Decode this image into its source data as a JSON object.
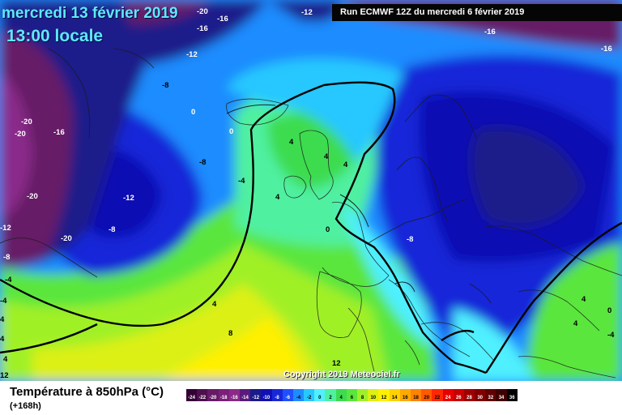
{
  "header": {
    "date": "mercredi 13 février 2019",
    "time": "13:00 locale",
    "run": "Run ECMWF 12Z du mercredi 6 février 2019"
  },
  "copyright": "Copyright 2019 Meteociel.fr",
  "legend": {
    "title": "Température à 850hPa (°C)",
    "subtitle": "(+168h)",
    "scale": [
      {
        "label": "-24",
        "color": "#330033",
        "text": "#ffffff"
      },
      {
        "label": "-22",
        "color": "#4d0f4d",
        "text": "#ffffff"
      },
      {
        "label": "-20",
        "color": "#661a66",
        "text": "#ffffff"
      },
      {
        "label": "-18",
        "color": "#7a1f7a",
        "text": "#ffffff"
      },
      {
        "label": "-16",
        "color": "#8a2a8a",
        "text": "#ffffff"
      },
      {
        "label": "-14",
        "color": "#5a1a7a",
        "text": "#ffffff"
      },
      {
        "label": "-12",
        "color": "#1a1a8a",
        "text": "#ffffff"
      },
      {
        "label": "-10",
        "color": "#1010b4",
        "text": "#ffffff"
      },
      {
        "label": "-8",
        "color": "#1828d8",
        "text": "#ffffff"
      },
      {
        "label": "-6",
        "color": "#1e50ff",
        "text": "#ffffff"
      },
      {
        "label": "-4",
        "color": "#1e8cff",
        "text": "#000000"
      },
      {
        "label": "-2",
        "color": "#28c8ff",
        "text": "#000000"
      },
      {
        "label": "0",
        "color": "#50f0ff",
        "text": "#000000"
      },
      {
        "label": "2",
        "color": "#50f0a0",
        "text": "#000000"
      },
      {
        "label": "4",
        "color": "#3cdc50",
        "text": "#000000"
      },
      {
        "label": "6",
        "color": "#5ae63c",
        "text": "#000000"
      },
      {
        "label": "8",
        "color": "#a0f028",
        "text": "#000000"
      },
      {
        "label": "10",
        "color": "#dcf014",
        "text": "#000000"
      },
      {
        "label": "12",
        "color": "#fff000",
        "text": "#000000"
      },
      {
        "label": "14",
        "color": "#ffd200",
        "text": "#000000"
      },
      {
        "label": "16",
        "color": "#ffaa00",
        "text": "#000000"
      },
      {
        "label": "18",
        "color": "#ff8200",
        "text": "#000000"
      },
      {
        "label": "20",
        "color": "#ff5a00",
        "text": "#000000"
      },
      {
        "label": "22",
        "color": "#ff2800",
        "text": "#000000"
      },
      {
        "label": "24",
        "color": "#e60000",
        "text": "#ffffff"
      },
      {
        "label": "26",
        "color": "#c80000",
        "text": "#ffffff"
      },
      {
        "label": "28",
        "color": "#a00000",
        "text": "#ffffff"
      },
      {
        "label": "30",
        "color": "#800000",
        "text": "#ffffff"
      },
      {
        "label": "32",
        "color": "#600000",
        "text": "#ffffff"
      },
      {
        "label": "34",
        "color": "#400000",
        "text": "#ffffff"
      },
      {
        "label": "36",
        "color": "#000000",
        "text": "#ffffff"
      }
    ]
  },
  "contour_labels": [
    "-20",
    "-16",
    "-12",
    "-16",
    "-16",
    "-16",
    "-12",
    "-8",
    "0",
    "0",
    "-20",
    "-16",
    "-20",
    "-8",
    "-20",
    "-12",
    "-8",
    "-4",
    "-20",
    "-12",
    "-8",
    "-4",
    "4",
    "4",
    "4",
    "4",
    "0",
    "-8",
    "4",
    "4",
    "8",
    "4",
    "4",
    "12",
    "12",
    "4",
    "4",
    "0",
    "-4",
    "-4"
  ]
}
